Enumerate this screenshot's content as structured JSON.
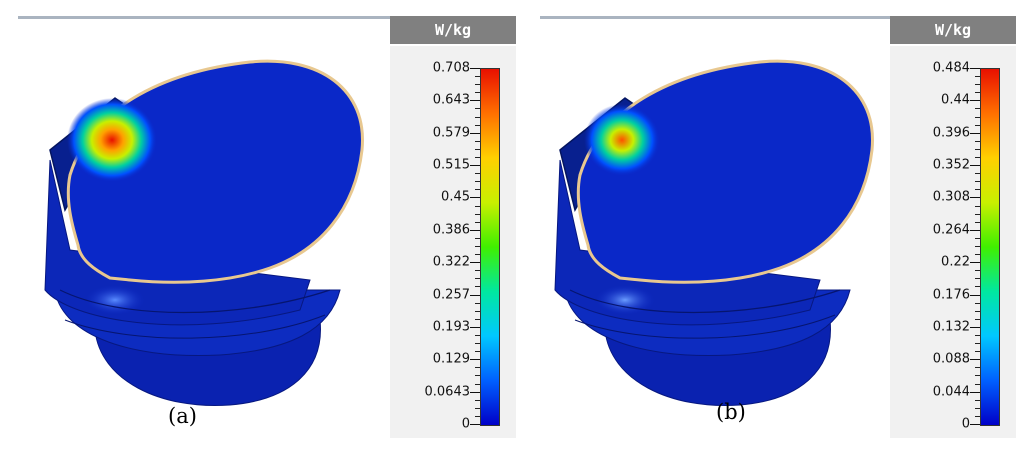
{
  "panels": [
    {
      "caption": "(a)",
      "unit": "W/kg",
      "colorbar": {
        "max": 0.708,
        "min": 0,
        "ticks": [
          "0.708",
          "0.643",
          "0.579",
          "0.515",
          "0.45",
          "0.386",
          "0.322",
          "0.257",
          "0.193",
          "0.129",
          "0.0643",
          "0"
        ]
      },
      "hotspot_level": 0.708
    },
    {
      "caption": "(b)",
      "unit": "W/kg",
      "colorbar": {
        "max": 0.484,
        "min": 0,
        "ticks": [
          "0.484",
          "0.44",
          "0.396",
          "0.352",
          "0.308",
          "0.264",
          "0.22",
          "0.176",
          "0.132",
          "0.088",
          "0.044",
          "0"
        ]
      },
      "hotspot_level": 0.484
    }
  ],
  "colors": {
    "colormap": [
      "#0000c8",
      "#0060ff",
      "#00c8ff",
      "#00e8a0",
      "#40f000",
      "#c8f000",
      "#ffd000",
      "#ff7000",
      "#e81000"
    ],
    "background_model": "#0a28c8",
    "legend_header": "#808080"
  }
}
